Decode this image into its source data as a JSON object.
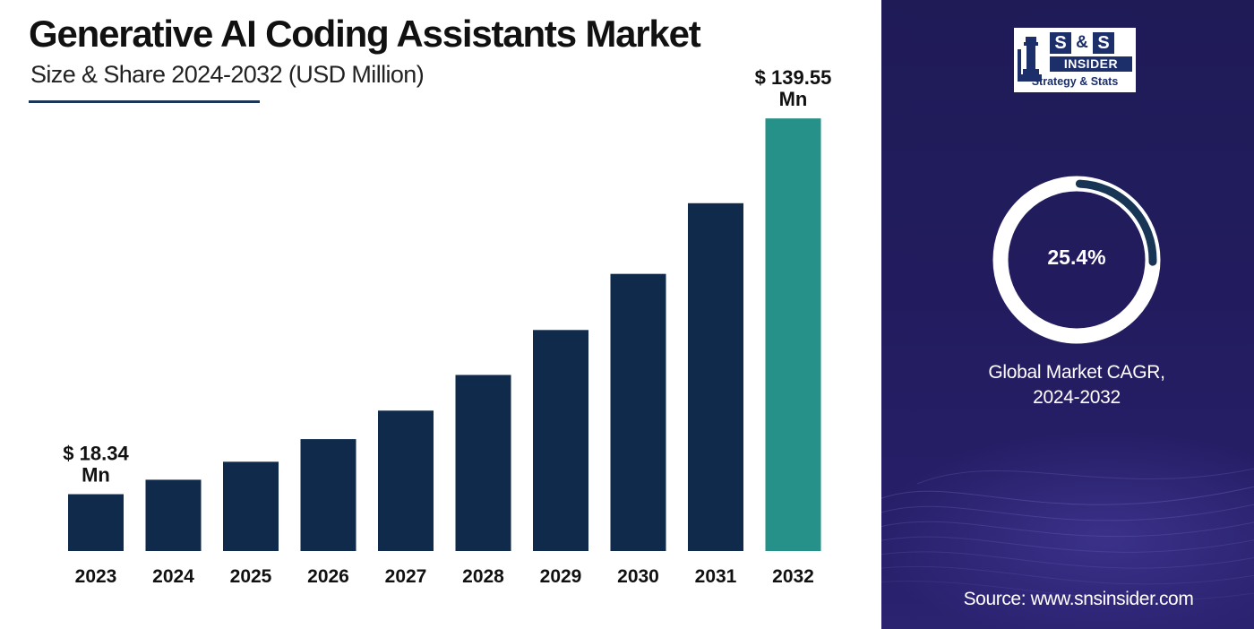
{
  "header": {
    "title": "Generative AI Coding Assistants Market",
    "subtitle": "Size & Share 2024-2032 (USD Million)"
  },
  "chart_data": {
    "type": "bar",
    "categories": [
      "2023",
      "2024",
      "2025",
      "2026",
      "2027",
      "2028",
      "2029",
      "2030",
      "2031",
      "2032"
    ],
    "values": [
      18.34,
      23.0,
      28.8,
      36.1,
      45.3,
      56.8,
      71.3,
      89.4,
      112.2,
      139.55
    ],
    "data_labels": [
      {
        "index": 0,
        "line1": "$ 18.34",
        "line2": "Mn"
      },
      {
        "index": 9,
        "line1": "$ 139.55",
        "line2": "Mn"
      }
    ],
    "bar_color": "#0f2a4a",
    "highlight_index": 9,
    "highlight_color": "#269188",
    "ylim": [
      0,
      150
    ],
    "grid": false,
    "xlabel": "",
    "ylabel": ""
  },
  "logo": {
    "s1": "S",
    "amp": "&",
    "s2": "S",
    "insider": "INSIDER",
    "tagline": "Strategy & Stats"
  },
  "cagr": {
    "value": "25.4%",
    "fraction": 0.254,
    "label_line1": "Global Market CAGR,",
    "label_line2": "2024-2032",
    "arc_color": "#183556",
    "ring_color": "#ffffff"
  },
  "source": "Source: www.snsinsider.com"
}
